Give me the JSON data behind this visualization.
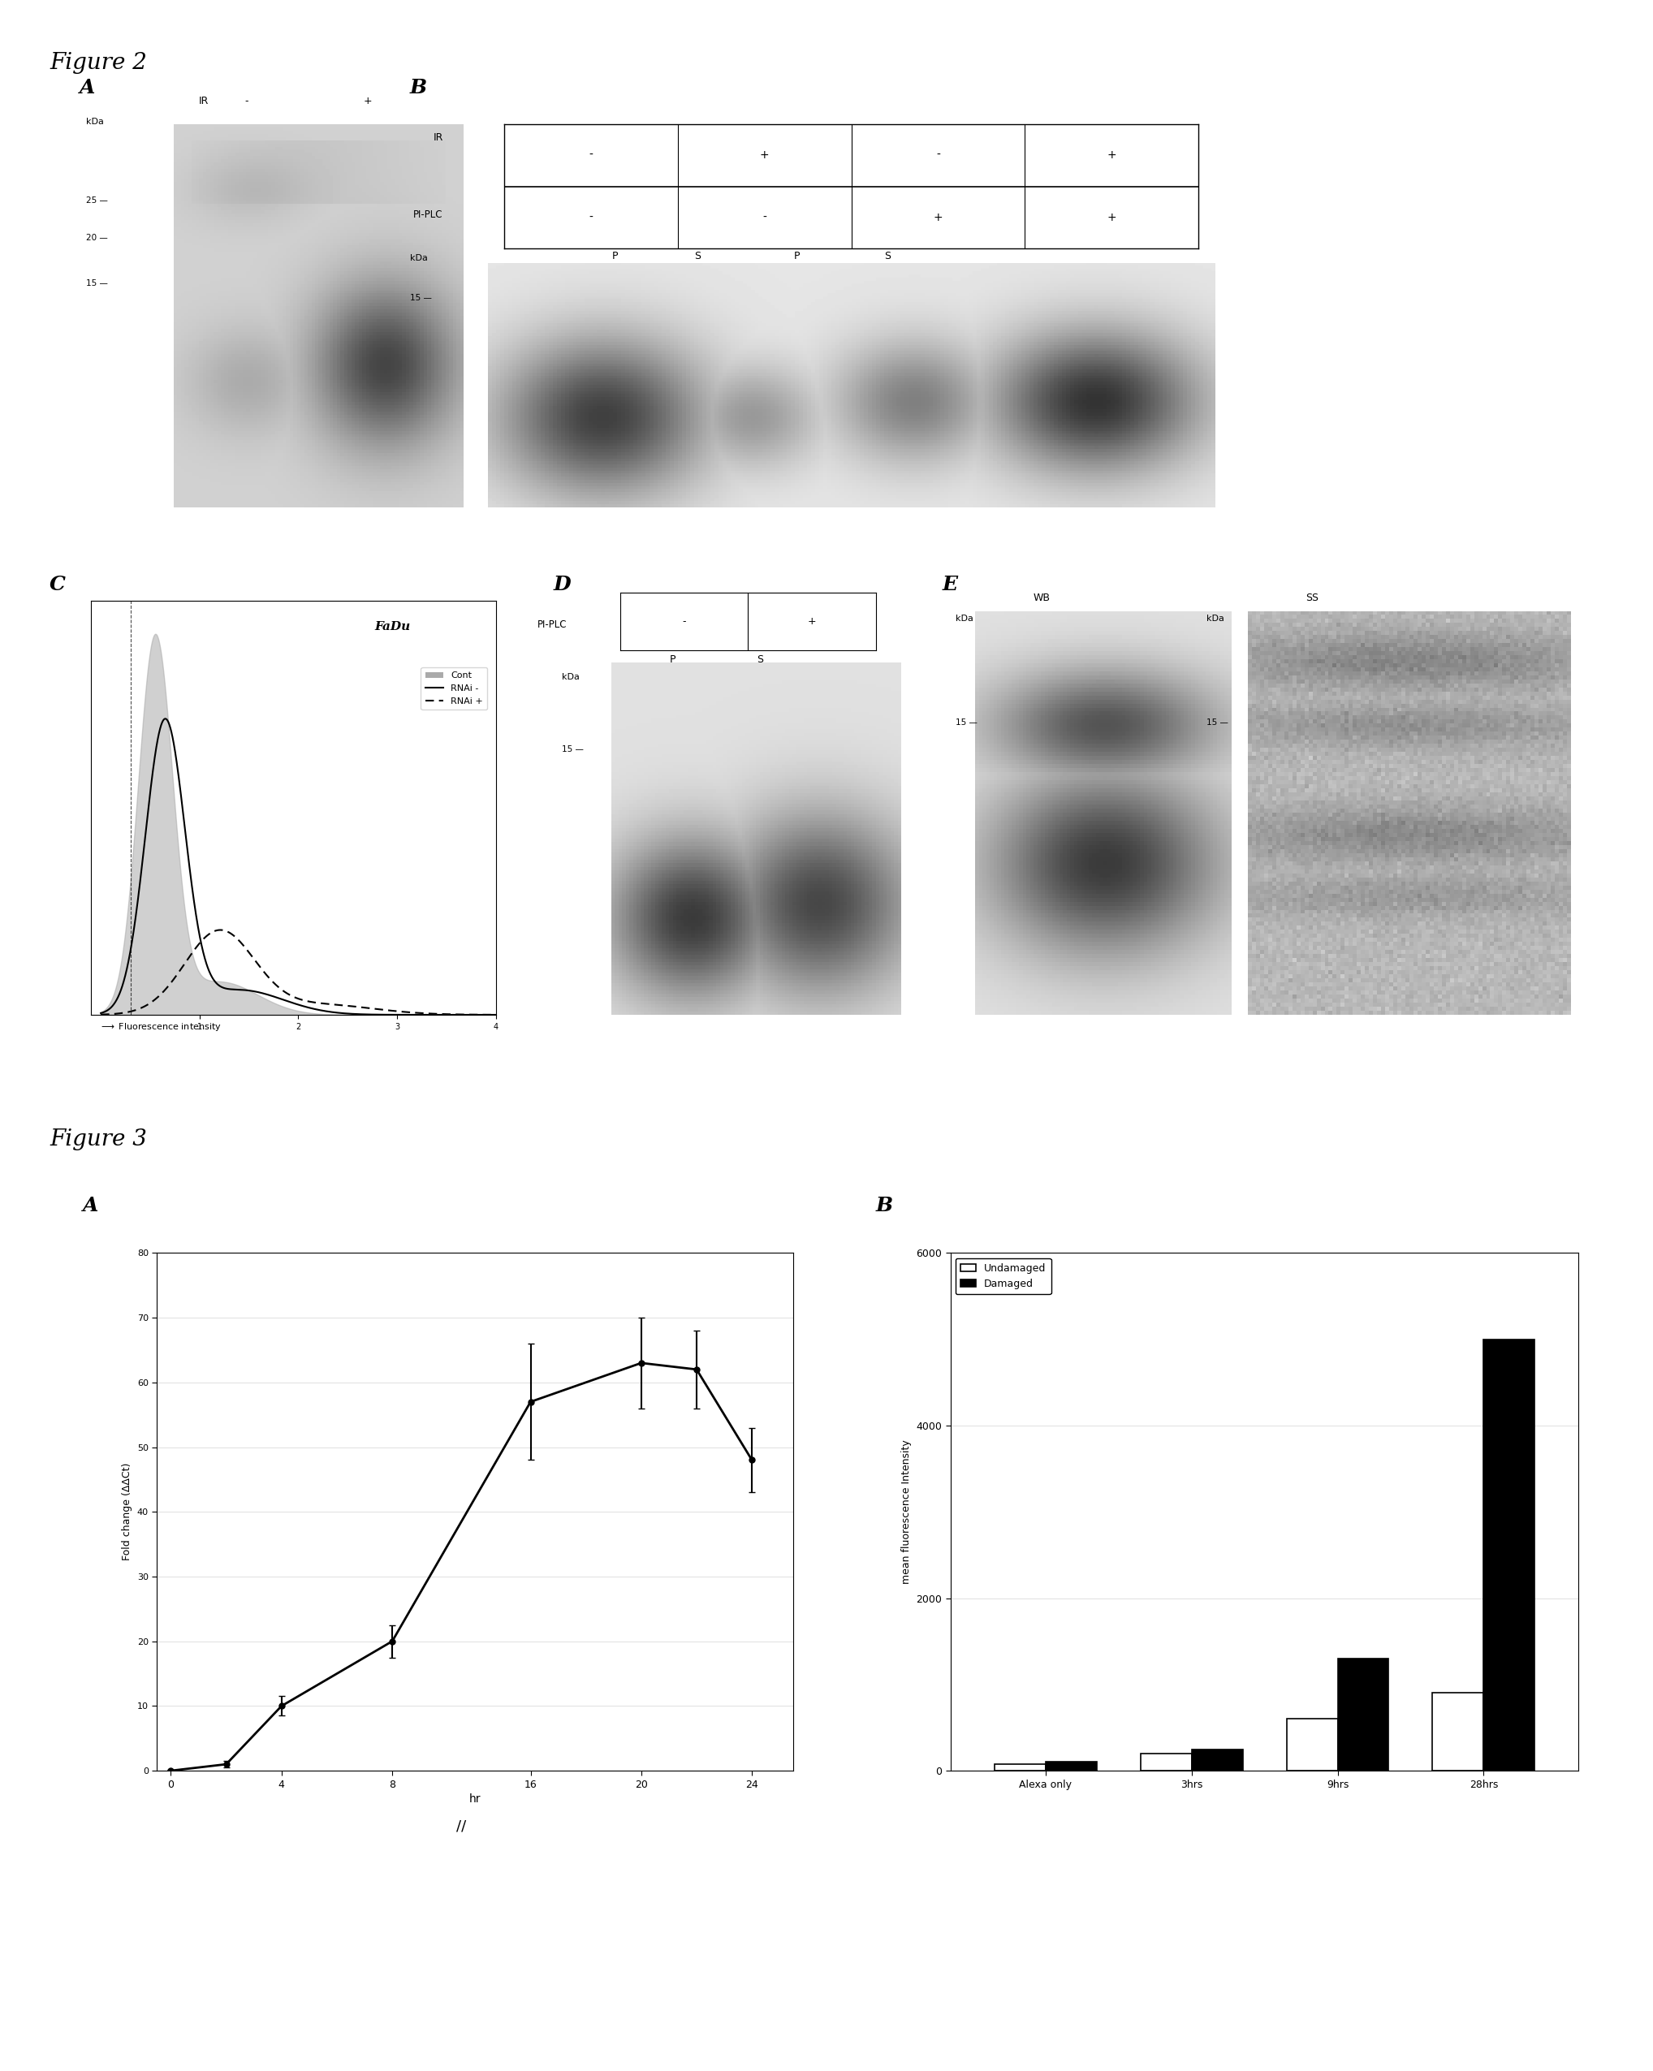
{
  "fig2_title": "Figure 2",
  "fig3_title": "Figure 3",
  "fig3A": {
    "x_plot": [
      0,
      2,
      4,
      8,
      13,
      17,
      19,
      21
    ],
    "y": [
      0,
      1,
      10,
      20,
      57,
      63,
      62,
      48
    ],
    "yerr": [
      0.2,
      0.5,
      1.5,
      2.5,
      9,
      7,
      6,
      5
    ],
    "xlabel": "hr",
    "ylabel": "Fold change (ΔΔCt)",
    "ylim": [
      0,
      80
    ],
    "yticks": [
      0,
      10,
      20,
      30,
      40,
      50,
      60,
      70,
      80
    ],
    "x_tick_positions": [
      0,
      4,
      8,
      13,
      17,
      21
    ],
    "x_tick_labels": [
      "0",
      "4",
      "8",
      "16",
      "20",
      "24"
    ]
  },
  "fig3B": {
    "categories": [
      "Alexa only",
      "3hrs",
      "9hrs",
      "28hrs"
    ],
    "undamaged": [
      80,
      200,
      600,
      900
    ],
    "damaged": [
      100,
      250,
      1300,
      5000
    ],
    "ylabel": "mean fluorescence Intensity",
    "ylim": [
      0,
      6000
    ],
    "yticks": [
      0,
      2000,
      4000,
      6000
    ],
    "legend_undamaged": "Undamaged",
    "legend_damaged": "Damaged",
    "bar_width": 0.35
  },
  "background_color": "#ffffff",
  "gel_bg": 0.82,
  "gel_dark": 0.15
}
